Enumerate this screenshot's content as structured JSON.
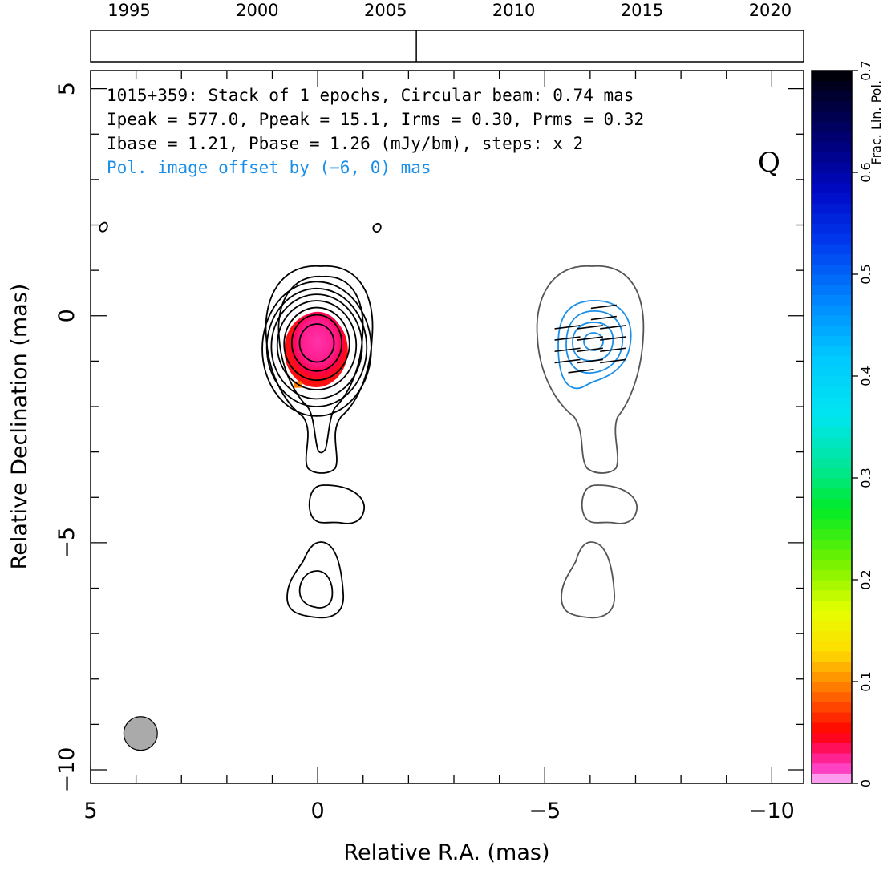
{
  "chart_data": {
    "type": "contour",
    "source": "1015+359",
    "header": {
      "line1": "1015+359: Stack of 1 epochs, Circular beam: 0.74 mas",
      "line2": "Ipeak = 577.0, Ppeak = 15.1, Irms = 0.30, Prms = 0.32",
      "line3": "Ibase = 1.21, Pbase = 1.26 (mJy/bm), steps: x 2",
      "line4": "Pol. image offset by (−6, 0) mas"
    },
    "stokes_label": "Q",
    "xlabel": "Relative R.A. (mas)",
    "ylabel": "Relative Declination (mas)",
    "xlim": [
      5,
      -10.7
    ],
    "ylim": [
      -10.3,
      5.4
    ],
    "xticks": [
      5,
      0,
      -5,
      -10
    ],
    "xtick_labels": [
      "5",
      "0",
      "−5",
      "−10"
    ],
    "yticks": [
      5,
      0,
      -5,
      -10
    ],
    "ytick_labels": [
      "5",
      "0",
      "−5",
      "−10"
    ],
    "timeline": {
      "year_range": [
        1993.5,
        2021.3
      ],
      "years": [
        1995,
        2000,
        2005,
        2010,
        2015,
        2020
      ],
      "year_labels": [
        "1995",
        "2000",
        "2005",
        "2010",
        "2015",
        "2020"
      ],
      "epoch_marks": [
        2006.2
      ]
    },
    "colorbar": {
      "label": "Frac. Lin. Pol.",
      "range": [
        0,
        0.7
      ],
      "ticks": [
        0,
        0.1,
        0.2,
        0.3,
        0.4,
        0.5,
        0.6,
        0.7
      ],
      "tick_labels": [
        "0",
        "0.1",
        "0.2",
        "0.3",
        "0.4",
        "0.5",
        "0.6",
        "0.7"
      ]
    },
    "beam": {
      "x": 3.9,
      "y": -9.2,
      "diameter_mas": 0.74,
      "color": "#aaaaaa"
    },
    "stokes_i_contours": [
      {
        "cx": 0.02,
        "cy": -0.6,
        "rx": 0.38,
        "ry": 0.42
      },
      {
        "cx": 0.02,
        "cy": -0.6,
        "rx": 0.55,
        "ry": 0.62
      },
      {
        "cx": 0.02,
        "cy": -0.62,
        "rx": 0.72,
        "ry": 0.8
      },
      {
        "cx": 0.02,
        "cy": -0.65,
        "rx": 0.87,
        "ry": 0.98
      },
      {
        "cx": 0.02,
        "cy": -0.68,
        "rx": 1.0,
        "ry": 1.15
      },
      {
        "cx": 0.02,
        "cy": -0.7,
        "rx": 1.1,
        "ry": 1.3
      },
      {
        "cx": 0.02,
        "cy": -0.73,
        "rx": 1.2,
        "ry": 1.48
      }
    ],
    "fractional_pol_patch": {
      "cx": 0.0,
      "cy": -0.65,
      "rx": 0.7,
      "ry": 0.82,
      "value_range": [
        0.02,
        0.12
      ]
    },
    "evpa_sticks_pol_panel": [
      {
        "x": -6.3,
        "y": 0.2
      },
      {
        "x": -6.3,
        "y": -0.05
      },
      {
        "x": -5.5,
        "y": -0.25
      },
      {
        "x": -6.0,
        "y": -0.25
      },
      {
        "x": -6.5,
        "y": -0.25
      },
      {
        "x": -5.5,
        "y": -0.5
      },
      {
        "x": -6.0,
        "y": -0.5
      },
      {
        "x": -6.5,
        "y": -0.5
      },
      {
        "x": -5.5,
        "y": -0.75
      },
      {
        "x": -6.0,
        "y": -0.75
      },
      {
        "x": -6.5,
        "y": -0.75
      },
      {
        "x": -5.5,
        "y": -1.0
      },
      {
        "x": -6.0,
        "y": -1.0
      },
      {
        "x": -6.5,
        "y": -1.0
      },
      {
        "x": -5.8,
        "y": -1.22
      }
    ],
    "colors": {
      "stokes_i_contour": "#000000",
      "pol_panel_i_contour": "#555555",
      "pol_contour": "#1a8fea",
      "pol_label": "#1a8fea"
    }
  }
}
